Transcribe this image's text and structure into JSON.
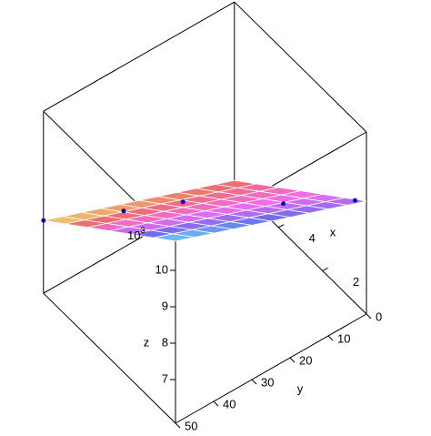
{
  "chart_data": {
    "type": "surface",
    "x_label": "x",
    "y_label": "y",
    "z_label": "z",
    "z_multiplier": {
      "base": "10",
      "exponent": "3"
    },
    "xlim": [
      0,
      6
    ],
    "ylim": [
      0,
      50
    ],
    "zlim": [
      5.8,
      10.8
    ],
    "xticks": [
      2,
      4
    ],
    "yticks": [
      0,
      10,
      20,
      30,
      40,
      50
    ],
    "zticks": [
      7,
      8,
      9,
      10
    ],
    "grid_x": [
      0,
      1,
      2,
      3,
      4,
      5,
      6
    ],
    "grid_y": [
      0,
      5,
      10,
      15,
      20,
      25,
      30,
      35,
      40,
      45,
      50
    ],
    "z": [
      [
        8.9,
        9.09,
        9.28,
        9.47,
        9.66,
        9.85,
        10.04,
        10.23,
        10.42,
        10.61,
        10.8
      ],
      [
        8.4,
        8.59,
        8.78,
        8.97,
        9.16,
        9.35,
        9.54,
        9.73,
        9.92,
        10.11,
        10.3
      ],
      [
        7.9,
        8.09,
        8.28,
        8.47,
        8.66,
        8.85,
        9.04,
        9.23,
        9.42,
        9.61,
        9.8
      ],
      [
        7.4,
        7.59,
        7.78,
        7.97,
        8.16,
        8.35,
        8.54,
        8.73,
        8.92,
        9.11,
        9.3
      ],
      [
        6.9,
        7.09,
        7.28,
        7.47,
        7.66,
        7.85,
        8.04,
        8.23,
        8.42,
        8.61,
        8.8
      ],
      [
        6.4,
        6.59,
        6.78,
        6.97,
        7.16,
        7.35,
        7.54,
        7.73,
        7.92,
        8.11,
        8.3
      ],
      [
        5.9,
        6.09,
        6.28,
        6.47,
        6.66,
        6.85,
        7.04,
        7.23,
        7.42,
        7.61,
        7.8
      ]
    ],
    "points": {
      "color": "#0000cc",
      "x": [
        6,
        6,
        4,
        1,
        0
      ],
      "y": [
        50,
        29,
        25,
        16,
        3
      ],
      "z": [
        7.8,
        6.8,
        8.0,
        9.2,
        9.1
      ]
    }
  }
}
